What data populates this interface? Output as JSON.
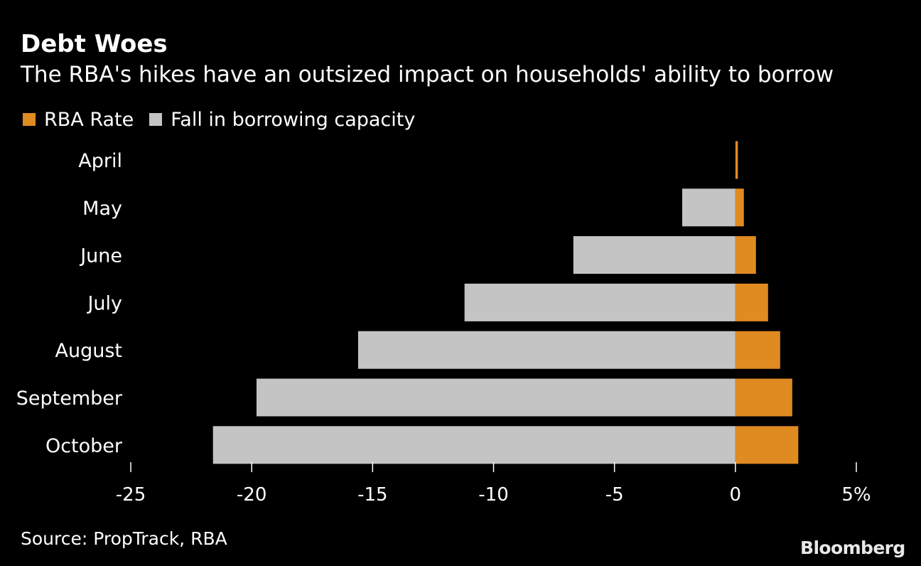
{
  "title": "Debt Woes",
  "subtitle": "The RBA's hikes have an outsized impact on households' ability to borrow",
  "legend": {
    "rate_label": "RBA Rate",
    "fall_label": "Fall in borrowing capacity"
  },
  "colors": {
    "background": "#000000",
    "rate": "#e08a22",
    "fall": "#c4c4c4",
    "text": "#ffffff"
  },
  "source": "Source: PropTrack, RBA",
  "brand": "Bloomberg",
  "chart_data": {
    "type": "bar",
    "orientation": "horizontal",
    "stacked": "diverging",
    "title": "Debt Woes",
    "subtitle": "The RBA's hikes have an outsized impact on households' ability to borrow",
    "categories": [
      "April",
      "May",
      "June",
      "July",
      "August",
      "September",
      "October"
    ],
    "series": [
      {
        "name": "RBA Rate",
        "values": [
          0.1,
          0.35,
          0.85,
          1.35,
          1.85,
          2.35,
          2.6
        ]
      },
      {
        "name": "Fall in borrowing capacity",
        "values": [
          0,
          -2.2,
          -6.7,
          -11.2,
          -15.6,
          -19.8,
          -21.6
        ]
      }
    ],
    "x_ticks": [
      -25,
      -20,
      -15,
      -10,
      -5,
      0,
      5
    ],
    "x_tick_labels": [
      "-25",
      "-20",
      "-15",
      "-10",
      "-5",
      "0",
      "5%"
    ],
    "xlim": [
      -25,
      5
    ],
    "xlabel": "",
    "ylabel": "",
    "grid": false,
    "legend_position": "top-left"
  }
}
